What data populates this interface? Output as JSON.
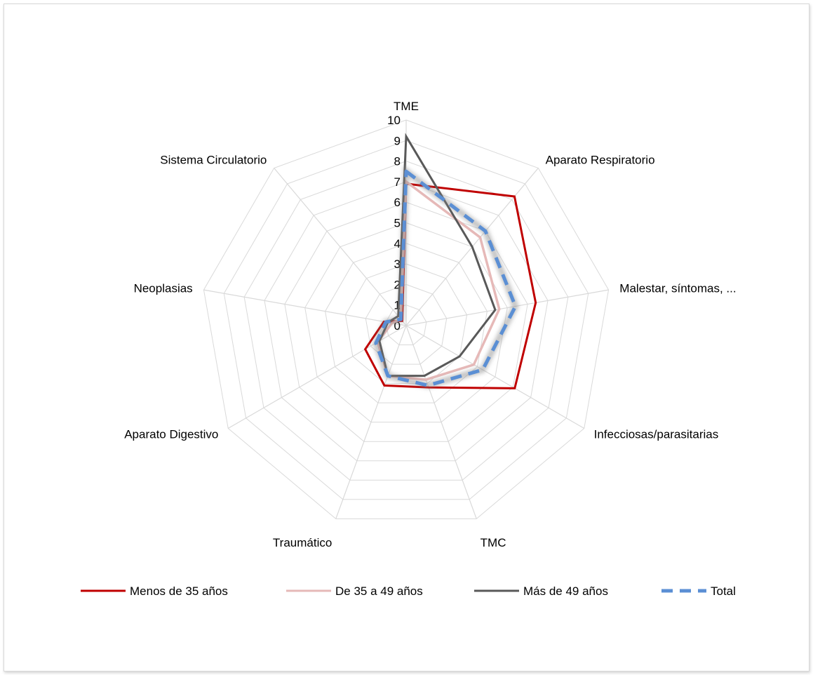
{
  "chart_data": {
    "type": "radar",
    "categories": [
      "TME",
      "Aparato Respiratorio",
      "Malestar, síntomas, ...",
      "Infecciosas/parasitarias",
      "TMC",
      "Traumático",
      "Aparato Digestivo",
      "Neoplasias",
      "Sistema Circulatorio"
    ],
    "ticks": [
      "0",
      "1",
      "2",
      "3",
      "4",
      "5",
      "6",
      "7",
      "8",
      "9",
      "10"
    ],
    "rlim": [
      0,
      10
    ],
    "grid": true,
    "legend_position": "bottom",
    "series": [
      {
        "name": "Menos de 35 años",
        "color": "#c00000",
        "style": "solid",
        "values": [
          6.9,
          8.2,
          6.4,
          6.1,
          3.2,
          3.1,
          2.3,
          1.1,
          0.3
        ]
      },
      {
        "name": "De 35 a 49 años",
        "color": "#e6b9b8",
        "style": "solid",
        "values": [
          7.0,
          5.6,
          4.6,
          3.8,
          2.8,
          2.6,
          1.6,
          0.7,
          0.4
        ]
      },
      {
        "name": "Más de 49 años",
        "color": "#595959",
        "style": "solid",
        "values": [
          9.2,
          5.0,
          4.4,
          3.0,
          2.6,
          2.6,
          1.5,
          0.9,
          0.6
        ]
      },
      {
        "name": "Total",
        "color": "#5b8fd4",
        "style": "dashed",
        "values": [
          7.5,
          6.0,
          5.4,
          4.3,
          3.1,
          2.6,
          1.7,
          1.0,
          0.4
        ]
      }
    ]
  }
}
